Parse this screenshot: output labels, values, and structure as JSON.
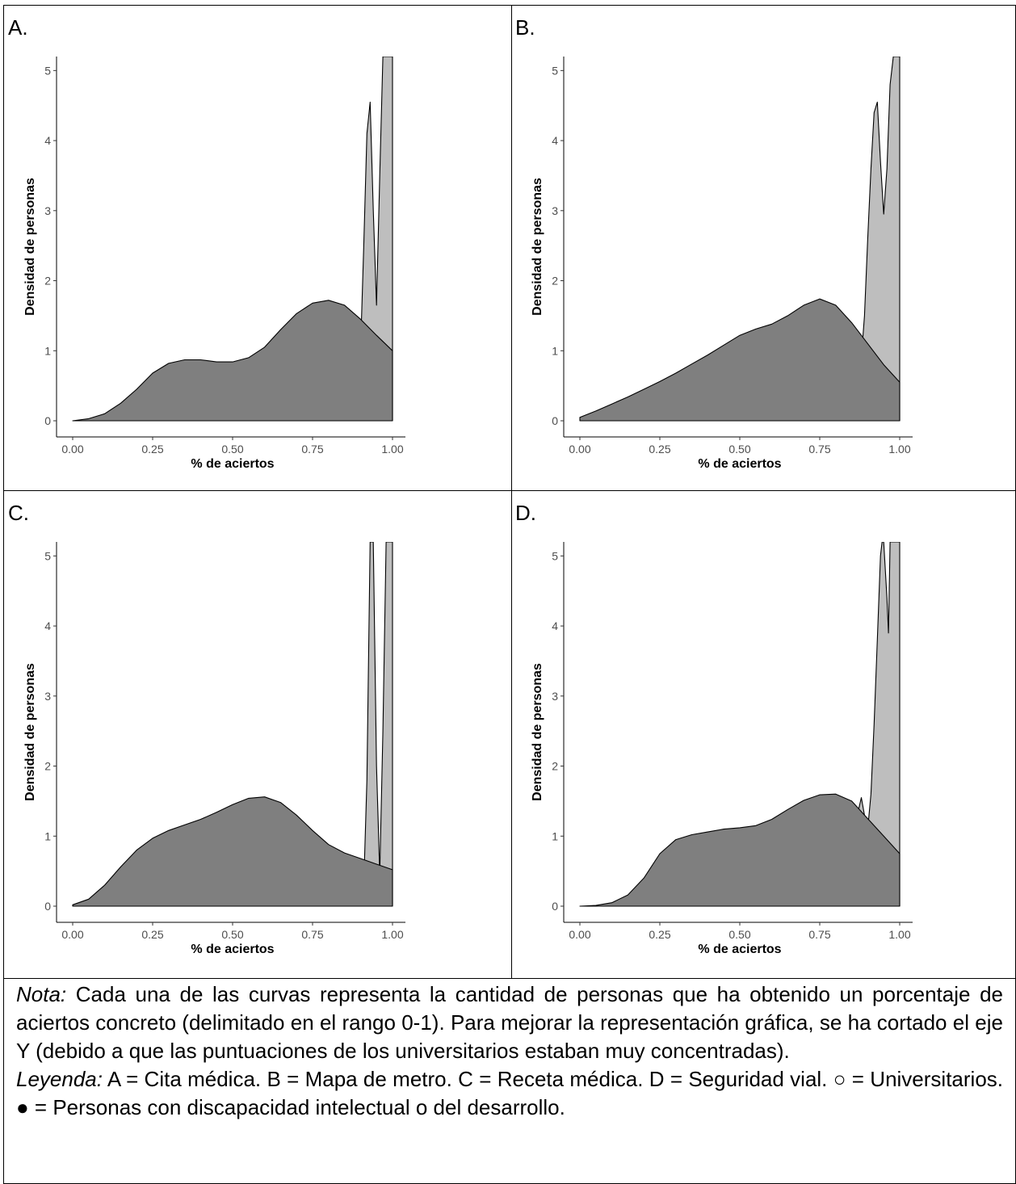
{
  "chart_data": [
    {
      "type": "area",
      "panel_label": "A.",
      "xlabel": "% de aciertos",
      "ylabel": "Densidad de personas",
      "xlim": [
        0,
        1
      ],
      "ylim": [
        0,
        5.2
      ],
      "x_ticks": [
        "0.00",
        "0.25",
        "0.50",
        "0.75",
        "1.00"
      ],
      "y_ticks": [
        "0",
        "1",
        "2",
        "3",
        "4",
        "5"
      ],
      "grid": false,
      "series": [
        {
          "role": "universitarios",
          "fill": "#bebebe",
          "x": [
            0.83,
            0.845,
            0.86,
            0.87,
            0.88,
            0.89,
            0.9,
            0.91,
            0.92,
            0.93,
            0.94,
            0.95,
            0.96,
            0.97,
            0.98,
            1.0
          ],
          "y": [
            0,
            0.15,
            0.6,
            0.9,
            0.65,
            0.3,
            1.0,
            2.5,
            4.1,
            4.55,
            3.0,
            1.65,
            3.5,
            5.2,
            5.2,
            5.2
          ]
        },
        {
          "role": "discapacidad",
          "fill": "#7f7f7f",
          "x": [
            0,
            0.05,
            0.1,
            0.15,
            0.2,
            0.25,
            0.3,
            0.35,
            0.4,
            0.45,
            0.5,
            0.55,
            0.6,
            0.65,
            0.7,
            0.75,
            0.8,
            0.85,
            0.9,
            0.95,
            1.0
          ],
          "y": [
            0,
            0.03,
            0.1,
            0.25,
            0.45,
            0.68,
            0.82,
            0.87,
            0.87,
            0.84,
            0.84,
            0.9,
            1.05,
            1.3,
            1.53,
            1.68,
            1.72,
            1.65,
            1.45,
            1.22,
            1.0
          ]
        }
      ]
    },
    {
      "type": "area",
      "panel_label": "B.",
      "xlabel": "% de aciertos",
      "ylabel": "Densidad de personas",
      "xlim": [
        0,
        1
      ],
      "ylim": [
        0,
        5.2
      ],
      "x_ticks": [
        "0.00",
        "0.25",
        "0.50",
        "0.75",
        "1.00"
      ],
      "y_ticks": [
        "0",
        "1",
        "2",
        "3",
        "4",
        "5"
      ],
      "grid": false,
      "series": [
        {
          "role": "universitarios",
          "fill": "#bebebe",
          "x": [
            0.8,
            0.82,
            0.84,
            0.85,
            0.86,
            0.87,
            0.88,
            0.89,
            0.9,
            0.91,
            0.92,
            0.93,
            0.94,
            0.95,
            0.96,
            0.97,
            0.98,
            1.0
          ],
          "y": [
            0,
            0.2,
            0.7,
            1.1,
            1.3,
            1.1,
            0.9,
            1.5,
            2.6,
            3.6,
            4.4,
            4.55,
            3.7,
            2.95,
            3.6,
            4.8,
            5.2,
            5.2
          ]
        },
        {
          "role": "discapacidad",
          "fill": "#7f7f7f",
          "x": [
            0,
            0.05,
            0.1,
            0.15,
            0.2,
            0.25,
            0.3,
            0.35,
            0.4,
            0.45,
            0.5,
            0.55,
            0.6,
            0.65,
            0.7,
            0.75,
            0.8,
            0.85,
            0.9,
            0.95,
            1.0
          ],
          "y": [
            0.05,
            0.14,
            0.24,
            0.34,
            0.45,
            0.56,
            0.68,
            0.81,
            0.94,
            1.08,
            1.22,
            1.31,
            1.38,
            1.5,
            1.65,
            1.74,
            1.65,
            1.4,
            1.1,
            0.8,
            0.55
          ]
        }
      ]
    },
    {
      "type": "area",
      "panel_label": "C.",
      "xlabel": "% de aciertos",
      "ylabel": "Densidad de personas",
      "xlim": [
        0,
        1
      ],
      "ylim": [
        0,
        5.2
      ],
      "x_ticks": [
        "0.00",
        "0.25",
        "0.50",
        "0.75",
        "1.00"
      ],
      "y_ticks": [
        "0",
        "1",
        "2",
        "3",
        "4",
        "5"
      ],
      "grid": false,
      "series": [
        {
          "role": "universitarios",
          "fill": "#bebebe",
          "x": [
            0.9,
            0.91,
            0.92,
            0.93,
            0.94,
            0.95,
            0.96,
            0.97,
            0.98,
            1.0
          ],
          "y": [
            0,
            0.3,
            1.8,
            5.2,
            5.2,
            2.0,
            0.45,
            2.5,
            5.2,
            5.2
          ]
        },
        {
          "role": "discapacidad",
          "fill": "#7f7f7f",
          "x": [
            0,
            0.05,
            0.1,
            0.15,
            0.2,
            0.25,
            0.3,
            0.35,
            0.4,
            0.45,
            0.5,
            0.55,
            0.6,
            0.65,
            0.7,
            0.75,
            0.8,
            0.85,
            0.9,
            0.95,
            1.0
          ],
          "y": [
            0.02,
            0.1,
            0.3,
            0.56,
            0.8,
            0.97,
            1.08,
            1.16,
            1.24,
            1.34,
            1.45,
            1.54,
            1.56,
            1.48,
            1.3,
            1.08,
            0.88,
            0.76,
            0.68,
            0.6,
            0.52
          ]
        }
      ]
    },
    {
      "type": "area",
      "panel_label": "D.",
      "xlabel": "% de aciertos",
      "ylabel": "Densidad de personas",
      "xlim": [
        0,
        1
      ],
      "ylim": [
        0,
        5.2
      ],
      "x_ticks": [
        "0.00",
        "0.25",
        "0.50",
        "0.75",
        "1.00"
      ],
      "y_ticks": [
        "0",
        "1",
        "2",
        "3",
        "4",
        "5"
      ],
      "grid": false,
      "series": [
        {
          "role": "universitarios",
          "fill": "#bebebe",
          "x": [
            0.83,
            0.845,
            0.86,
            0.87,
            0.88,
            0.89,
            0.9,
            0.91,
            0.92,
            0.93,
            0.94,
            0.945,
            0.95,
            0.96,
            0.965,
            0.97,
            0.98,
            1.0
          ],
          "y": [
            0,
            0.3,
            0.9,
            1.35,
            1.55,
            1.3,
            1.1,
            1.6,
            2.6,
            3.8,
            5.0,
            5.2,
            5.2,
            4.4,
            3.9,
            5.2,
            5.2,
            5.2
          ]
        },
        {
          "role": "discapacidad",
          "fill": "#7f7f7f",
          "x": [
            0,
            0.05,
            0.1,
            0.15,
            0.2,
            0.25,
            0.3,
            0.35,
            0.4,
            0.45,
            0.5,
            0.55,
            0.6,
            0.65,
            0.7,
            0.75,
            0.8,
            0.85,
            0.9,
            0.95,
            1.0
          ],
          "y": [
            0,
            0.01,
            0.05,
            0.16,
            0.4,
            0.75,
            0.95,
            1.02,
            1.06,
            1.1,
            1.12,
            1.15,
            1.24,
            1.38,
            1.51,
            1.59,
            1.6,
            1.5,
            1.25,
            1.0,
            0.75
          ]
        }
      ]
    }
  ],
  "note": {
    "nota_label": "Nota:",
    "nota_text": " Cada una de las curvas representa la cantidad de personas que ha obtenido un porcentaje de aciertos concreto (delimitado en el rango 0-1). Para mejorar la representación gráfica, se ha cortado el eje Y (debido a que las puntuaciones de los universitarios estaban muy concentradas).",
    "leyenda_label": "Leyenda:",
    "leyenda_text": " A = Cita médica. B = Mapa de metro. C = Receta médica. D = Seguridad vial. ○ = Universitarios. ● = Personas con discapacidad intelectual o del desarrollo."
  }
}
